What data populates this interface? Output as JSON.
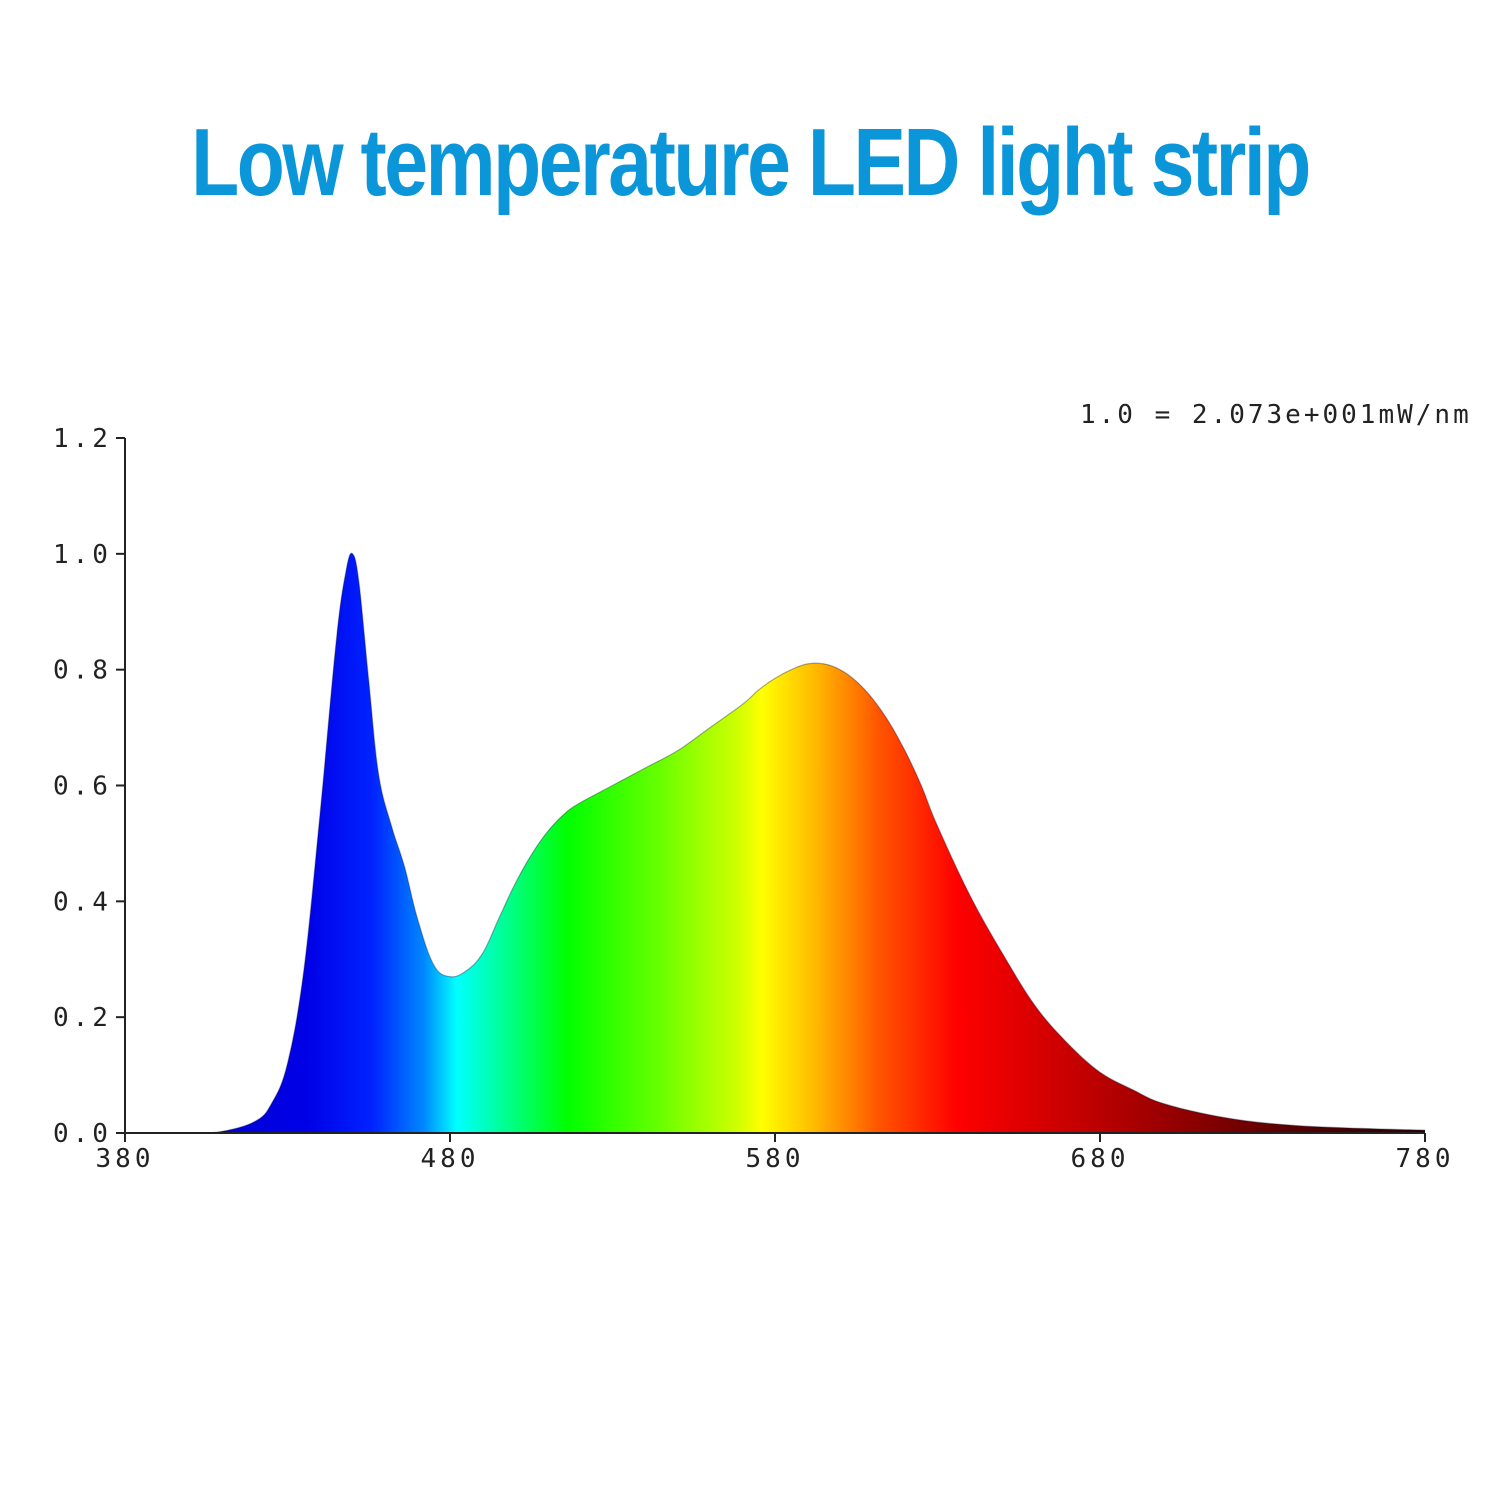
{
  "title": "Low temperature LED light strip",
  "colors": {
    "title": "#0a96d8",
    "axis": "#222222"
  },
  "chart_data": {
    "type": "area",
    "title": "",
    "annotation": "1.0 = 2.073e+001mW/nm",
    "xlabel": "",
    "ylabel": "",
    "xlim": [
      380,
      780
    ],
    "ylim": [
      0,
      1.2
    ],
    "x_ticks": [
      "380",
      "480",
      "580",
      "680",
      "780"
    ],
    "y_ticks": [
      "0.0",
      "0.2",
      "0.4",
      "0.6",
      "0.8",
      "1.0",
      "1.2"
    ],
    "grid": false,
    "fill": "visible-spectrum gradient",
    "series": [
      {
        "x": [
          380,
          400,
          410,
          420,
          425,
          430,
          435,
          440,
          445,
          448,
          450,
          452,
          455,
          458,
          462,
          466,
          470,
          475,
          480,
          485,
          490,
          495,
          500,
          505,
          510,
          515,
          520,
          530,
          540,
          550,
          560,
          570,
          575,
          580,
          585,
          590,
          595,
          600,
          605,
          610,
          615,
          620,
          625,
          630,
          640,
          650,
          660,
          670,
          680,
          690,
          700,
          720,
          740,
          760,
          780
        ],
        "y": [
          0.0,
          0.0,
          0.003,
          0.02,
          0.05,
          0.12,
          0.28,
          0.55,
          0.85,
          0.97,
          1.0,
          0.95,
          0.78,
          0.62,
          0.53,
          0.46,
          0.37,
          0.29,
          0.27,
          0.28,
          0.31,
          0.37,
          0.43,
          0.48,
          0.52,
          0.55,
          0.57,
          0.6,
          0.63,
          0.66,
          0.7,
          0.74,
          0.765,
          0.785,
          0.8,
          0.81,
          0.81,
          0.8,
          0.78,
          0.75,
          0.71,
          0.66,
          0.6,
          0.53,
          0.41,
          0.31,
          0.22,
          0.155,
          0.105,
          0.075,
          0.05,
          0.025,
          0.013,
          0.008,
          0.005
        ]
      }
    ]
  }
}
